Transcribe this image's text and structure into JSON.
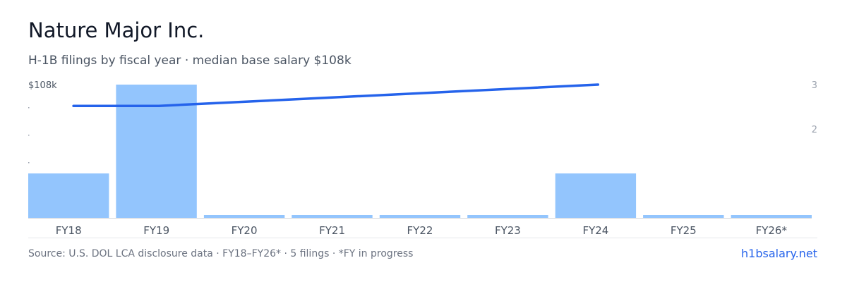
{
  "header": {
    "title": "Nature Major Inc.",
    "subtitle": "H-1B filings by fiscal year · median base salary $108k"
  },
  "footer": {
    "source": "Source: U.S. DOL LCA disclosure data · FY18–FY26* · 5 filings · *FY in progress",
    "brand": "h1bsalary.net"
  },
  "colors": {
    "bar": "#93c5fd",
    "line": "#2563eb",
    "axis_text": "#4b5563",
    "tick_text": "#9ca3af"
  },
  "chart_data": {
    "type": "bar",
    "categories": [
      "FY18",
      "FY19",
      "FY20",
      "FY21",
      "FY22",
      "FY23",
      "FY24",
      "FY25",
      "FY26*"
    ],
    "values": [
      1,
      3,
      0,
      0,
      0,
      0,
      1,
      0,
      0
    ],
    "right_axis": {
      "ticks": [
        2,
        3
      ],
      "ylim": [
        0,
        3.3
      ]
    },
    "left_axis": {
      "label": "$108k"
    },
    "line": {
      "type": "line",
      "from_category": "FY18",
      "to_category": "FY24",
      "points": [
        {
          "category": "FY18",
          "value": 2.52
        },
        {
          "category": "FY19",
          "value": 2.52
        },
        {
          "category": "FY24",
          "value": 3.0
        }
      ]
    },
    "grid": false
  }
}
